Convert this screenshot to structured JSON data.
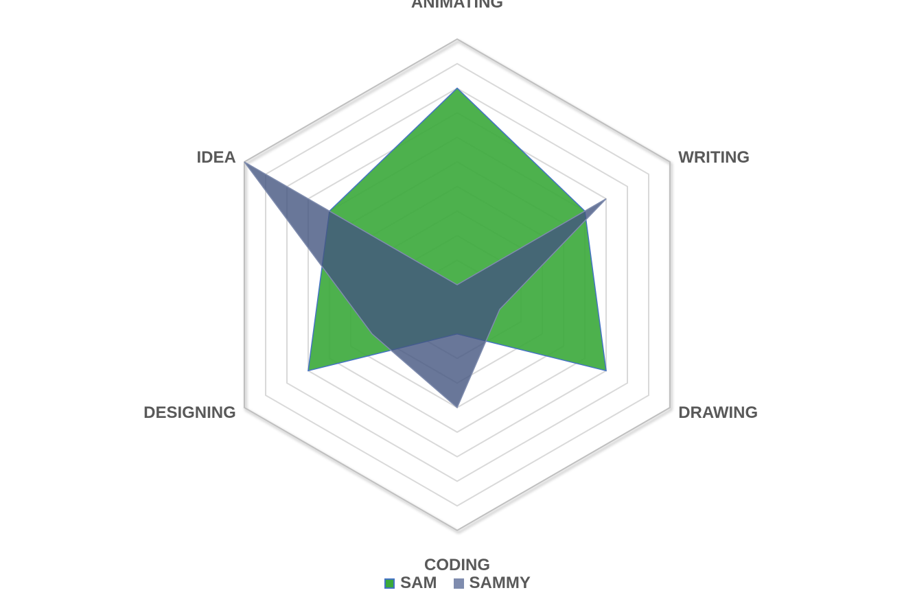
{
  "chart_data": {
    "type": "radar",
    "categories": [
      "ANIMATING",
      "WRITING",
      "DRAWING",
      "CODING",
      "DESIGNING",
      "IDEA"
    ],
    "rmax": 10,
    "gridlines": 10,
    "series": [
      {
        "name": "SAM",
        "values": [
          8,
          6,
          7,
          2,
          7,
          6
        ],
        "fill": "#3aa93a",
        "stroke": "#4472c4",
        "fill_opacity": 0.9
      },
      {
        "name": "SAMMY",
        "values": [
          0,
          7,
          2,
          5,
          4,
          10
        ],
        "fill": "#44557f",
        "stroke": "#7f8cae",
        "fill_opacity": 0.8
      }
    ]
  },
  "legend": {
    "items": [
      {
        "label": "SAM",
        "color": "#3aa93a",
        "border": "#4472c4"
      },
      {
        "label": "SAMMY",
        "color": "#7f8cae",
        "border": "#7f8cae"
      }
    ]
  },
  "colors": {
    "grid": "#d9d9d9",
    "outer_ring": "#bfbfbf",
    "text": "#595959"
  }
}
